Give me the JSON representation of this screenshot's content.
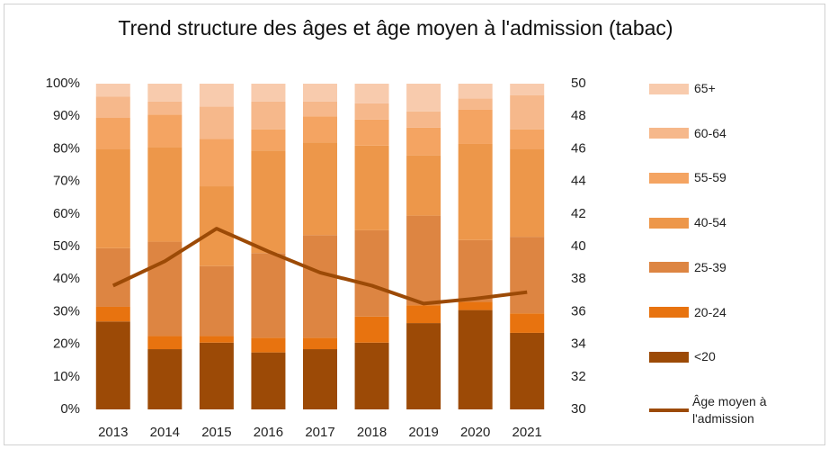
{
  "chart_data": {
    "type": "bar",
    "stacked": true,
    "title": "Trend structure des âges et âge moyen à l'admission (tabac)",
    "categories": [
      "2013",
      "2014",
      "2015",
      "2016",
      "2017",
      "2018",
      "2019",
      "2020",
      "2021"
    ],
    "series": [
      {
        "name": "<20",
        "color": "#9c4a06",
        "values": [
          27,
          18.5,
          20.5,
          17.5,
          18.5,
          20.5,
          26.5,
          30.5,
          23.5
        ]
      },
      {
        "name": "20-24",
        "color": "#e8730f",
        "values": [
          4.5,
          4,
          2,
          4.5,
          3.5,
          8,
          5.5,
          2.5,
          6
        ]
      },
      {
        "name": "25-39",
        "color": "#dd8542",
        "values": [
          18,
          29,
          21.5,
          26,
          31.5,
          26.5,
          27.5,
          19,
          23.5
        ]
      },
      {
        "name": "40-54",
        "color": "#ed974a",
        "values": [
          30.5,
          29,
          24.5,
          31.5,
          28.5,
          26,
          18.5,
          29.5,
          27
        ]
      },
      {
        "name": "55-59",
        "color": "#f4a462",
        "values": [
          9.5,
          10,
          14.5,
          6.5,
          8,
          8,
          8.5,
          10.5,
          6
        ]
      },
      {
        "name": "60-64",
        "color": "#f6b88b",
        "values": [
          6.5,
          4,
          10,
          8.5,
          4.5,
          5,
          5,
          3.5,
          10.5
        ]
      },
      {
        "name": "65+",
        "color": "#f8cbad",
        "values": [
          4,
          5.5,
          7,
          5.5,
          5.5,
          6,
          8.5,
          4.5,
          3.5
        ]
      },
      {
        "name": "Âge moyen à l'admission",
        "type": "line",
        "axis": "y2",
        "color": "#9c4a06",
        "values": [
          37.6,
          39.1,
          41.1,
          39.7,
          38.4,
          37.6,
          36.5,
          36.8,
          37.2
        ]
      }
    ],
    "ylim": [
      0,
      100
    ],
    "yticks": [
      {
        "value": 0,
        "label": "0%"
      },
      {
        "value": 10,
        "label": "10%"
      },
      {
        "value": 20,
        "label": "20%"
      },
      {
        "value": 30,
        "label": "30%"
      },
      {
        "value": 40,
        "label": "40%"
      },
      {
        "value": 50,
        "label": "50%"
      },
      {
        "value": 60,
        "label": "60%"
      },
      {
        "value": 70,
        "label": "70%"
      },
      {
        "value": 80,
        "label": "80%"
      },
      {
        "value": 90,
        "label": "90%"
      },
      {
        "value": 100,
        "label": "100%"
      }
    ],
    "y2lim": [
      30,
      50
    ],
    "y2ticks": [
      30,
      32,
      34,
      36,
      38,
      40,
      42,
      44,
      46,
      48,
      50
    ],
    "legend": "right"
  }
}
